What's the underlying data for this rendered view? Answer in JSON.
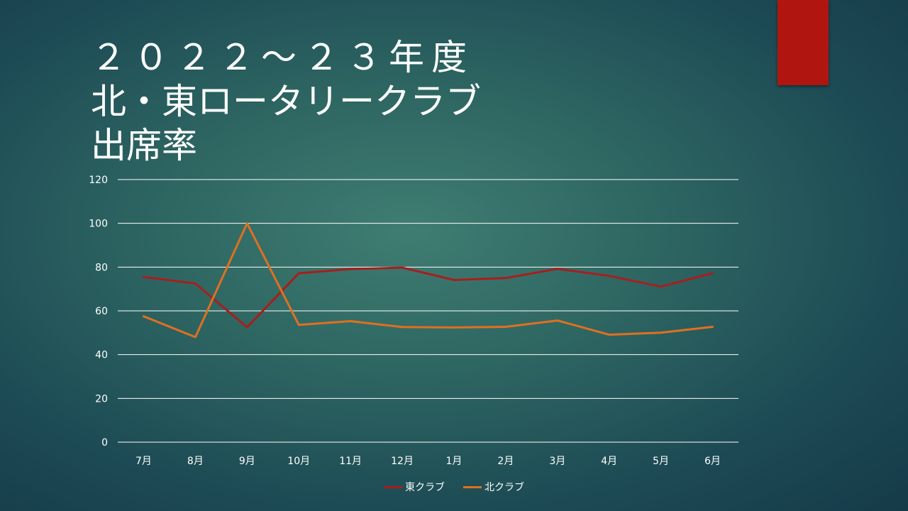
{
  "slide": {
    "title_lines": [
      "２０２２～２３年度",
      "北・東ロータリークラブ",
      "出席率"
    ],
    "accent_color": "#b0160f"
  },
  "chart_data": {
    "type": "line",
    "categories": [
      "7月",
      "8月",
      "9月",
      "10月",
      "11月",
      "12月",
      "1月",
      "2月",
      "3月",
      "4月",
      "5月",
      "6月"
    ],
    "series": [
      {
        "name": "東クラブ",
        "color": "#a81e1e",
        "values": [
          75.5,
          72.5,
          52.5,
          77.2,
          79.1,
          79.8,
          74.1,
          75.0,
          79.2,
          76.0,
          71.1,
          77.2
        ]
      },
      {
        "name": "北クラブ",
        "color": "#e07020",
        "values": [
          57.5,
          48.0,
          100.0,
          53.6,
          55.3,
          52.6,
          52.4,
          52.7,
          55.6,
          49.1,
          50.0,
          52.7
        ]
      }
    ],
    "yticks": [
      "0",
      "20",
      "40",
      "60",
      "80",
      "100",
      "120"
    ],
    "ylim": [
      0,
      120
    ],
    "grid": true,
    "legend": "bottom-center"
  }
}
